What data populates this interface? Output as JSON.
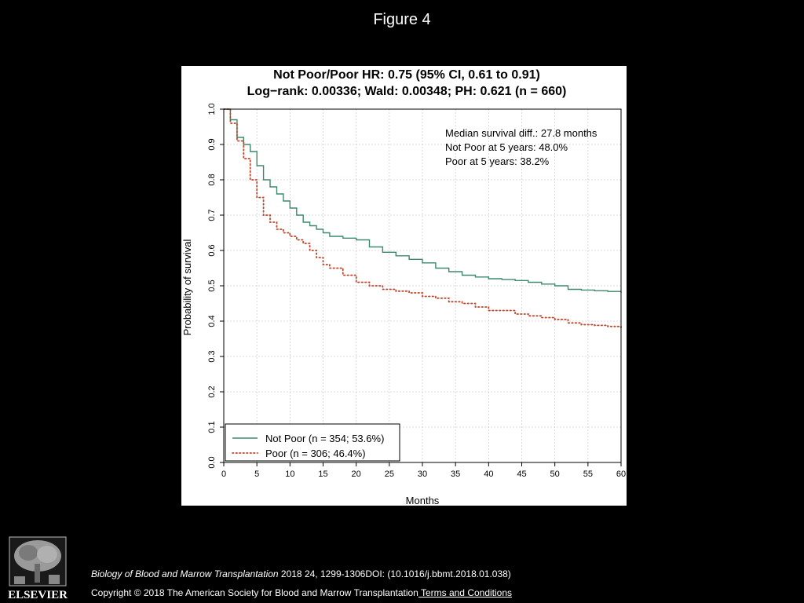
{
  "slide": {
    "title": "Figure 4"
  },
  "chart_data": {
    "type": "line",
    "title": [
      "Not Poor/Poor HR: 0.75 (95% CI, 0.61 to 0.91)",
      "Log−rank: 0.00336; Wald: 0.00348; PH: 0.621 (n = 660)"
    ],
    "xlabel": "Months",
    "ylabel": "Probability of survival",
    "xlim": [
      0,
      60
    ],
    "ylim": [
      0,
      1.0
    ],
    "x_ticks": [
      "0",
      "5",
      "10",
      "15",
      "20",
      "25",
      "30",
      "35",
      "40",
      "45",
      "50",
      "55",
      "60"
    ],
    "y_ticks": [
      "0.0",
      "0.1",
      "0.2",
      "0.3",
      "0.4",
      "0.5",
      "0.6",
      "0.7",
      "0.8",
      "0.9",
      "1.0"
    ],
    "grid": true,
    "annotations": [
      "Median survival diff.: 27.8 months",
      "Not Poor at 5 years: 48.0%",
      "Poor at 5 years: 38.2%"
    ],
    "legend_position": "bottom-left",
    "series": [
      {
        "name": "Not Poor (n = 354; 53.6%)",
        "color": "#3d8a6a",
        "style": "solid",
        "x": [
          0,
          1,
          2,
          3,
          4,
          5,
          6,
          7,
          8,
          9,
          10,
          11,
          12,
          13,
          14,
          15,
          16,
          18,
          20,
          22,
          24,
          26,
          28,
          30,
          32,
          34,
          36,
          38,
          40,
          42,
          44,
          46,
          48,
          50,
          52,
          54,
          56,
          58,
          60
        ],
        "y": [
          1.0,
          0.97,
          0.92,
          0.9,
          0.88,
          0.84,
          0.8,
          0.78,
          0.76,
          0.74,
          0.72,
          0.7,
          0.68,
          0.67,
          0.66,
          0.65,
          0.64,
          0.635,
          0.63,
          0.61,
          0.595,
          0.585,
          0.575,
          0.565,
          0.55,
          0.54,
          0.53,
          0.525,
          0.52,
          0.518,
          0.515,
          0.51,
          0.505,
          0.5,
          0.49,
          0.488,
          0.486,
          0.484,
          0.48
        ]
      },
      {
        "name": "Poor (n = 306; 46.4%)",
        "color": "#c0452a",
        "style": "dotted",
        "x": [
          0,
          1,
          2,
          3,
          4,
          5,
          6,
          7,
          8,
          9,
          10,
          11,
          12,
          13,
          14,
          15,
          16,
          18,
          20,
          22,
          24,
          26,
          28,
          30,
          32,
          34,
          36,
          38,
          40,
          42,
          44,
          46,
          48,
          50,
          52,
          54,
          56,
          58,
          60
        ],
        "y": [
          1.0,
          0.96,
          0.91,
          0.86,
          0.8,
          0.75,
          0.7,
          0.68,
          0.66,
          0.65,
          0.64,
          0.63,
          0.62,
          0.6,
          0.58,
          0.56,
          0.55,
          0.53,
          0.51,
          0.5,
          0.49,
          0.485,
          0.48,
          0.47,
          0.465,
          0.455,
          0.45,
          0.44,
          0.43,
          0.43,
          0.42,
          0.415,
          0.41,
          0.405,
          0.395,
          0.39,
          0.388,
          0.385,
          0.382
        ]
      }
    ]
  },
  "footer": {
    "publisher": "ELSEVIER",
    "journal": "Biology of Blood and Marrow Transplantation",
    "citation_rest": " 2018 24, 1299-1306DOI: (10.1016/j.bbmt.2018.01.038)",
    "copyright": "Copyright © 2018 The American Society for Blood and Marrow Transplantation",
    "terms_link": " Terms and Conditions"
  }
}
